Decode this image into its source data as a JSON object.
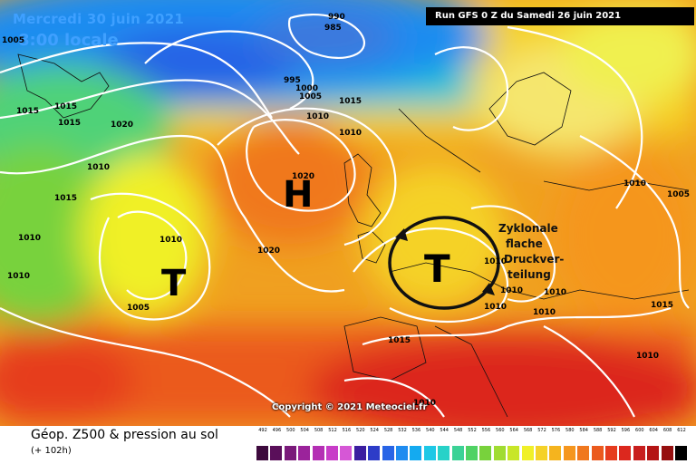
{
  "header": {
    "valid_date": "Mercredi 30 juin 2021",
    "valid_time": "8:00 locale",
    "run_info": "Run GFS 0 Z du Samedi 26 juin 2021"
  },
  "copyright": "Copyright © 2021 Meteociel.fr",
  "footer": {
    "title": "Géop. Z500 & pression au sol",
    "subtitle": "(+ 102h)"
  },
  "pressure_centers": {
    "high": "H",
    "low_atlantic": "T",
    "low_europe": "T"
  },
  "annotation": {
    "line1": "Zyklonale",
    "line2": "flache",
    "line3": "Druckver-",
    "line4": "teilung"
  },
  "isobar_labels": [
    "990",
    "985",
    "995",
    "1000",
    "1005",
    "1010",
    "1015",
    "1010",
    "1015",
    "1015",
    "1015",
    "1020",
    "1010",
    "1010",
    "1005",
    "1010",
    "1020",
    "1020",
    "1010",
    "1005",
    "1005",
    "1015",
    "1010",
    "1010",
    "1010",
    "1010",
    "1015",
    "1010",
    "1010",
    "1010",
    "1015",
    "1010"
  ],
  "legend": {
    "labels": [
      "492",
      "496",
      "500",
      "504",
      "508",
      "512",
      "516",
      "520",
      "524",
      "528",
      "532",
      "536",
      "540",
      "544",
      "548",
      "552",
      "556",
      "560",
      "564",
      "568",
      "572",
      "576",
      "580",
      "584",
      "588",
      "592",
      "596",
      "600",
      "604",
      "608",
      "612"
    ],
    "colors": [
      "#3d0a3d",
      "#5a0f5a",
      "#7a1a7a",
      "#9b239b",
      "#b42fb4",
      "#c83cc8",
      "#d657d6",
      "#3c1ea0",
      "#2d3cc8",
      "#2864e6",
      "#1e8cf0",
      "#14aaf0",
      "#1ec8e6",
      "#28d2c8",
      "#3cd296",
      "#50d264",
      "#78d23c",
      "#a0dc32",
      "#c8e628",
      "#f0f028",
      "#f5d228",
      "#f5b41e",
      "#f5961e",
      "#f0781e",
      "#eb5a1e",
      "#e63c1e",
      "#dc281e",
      "#c81e1e",
      "#b41414",
      "#960f0f",
      "#000000"
    ]
  },
  "colors": {
    "contour_line": "#ffffff",
    "header_text": "#3fa0ff",
    "run_box": "#000000"
  }
}
